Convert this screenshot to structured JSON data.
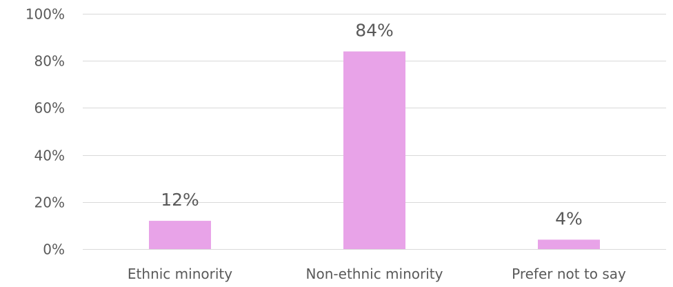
{
  "chart_data": {
    "type": "bar",
    "categories": [
      "Ethnic minority",
      "Non-ethnic minority",
      "Prefer not to say"
    ],
    "values": [
      12,
      84,
      4
    ],
    "data_labels": [
      "12%",
      "84%",
      "4%"
    ],
    "ylim": [
      0,
      100
    ],
    "y_ticks": [
      0,
      20,
      40,
      60,
      80,
      100
    ],
    "y_tick_labels": [
      "0%",
      "20%",
      "40%",
      "60%",
      "80%",
      "100%"
    ],
    "grid": true,
    "legend": "none",
    "bar_color": "#e8a3e8",
    "grid_color": "#d9d9d9",
    "text_color": "#595959"
  }
}
